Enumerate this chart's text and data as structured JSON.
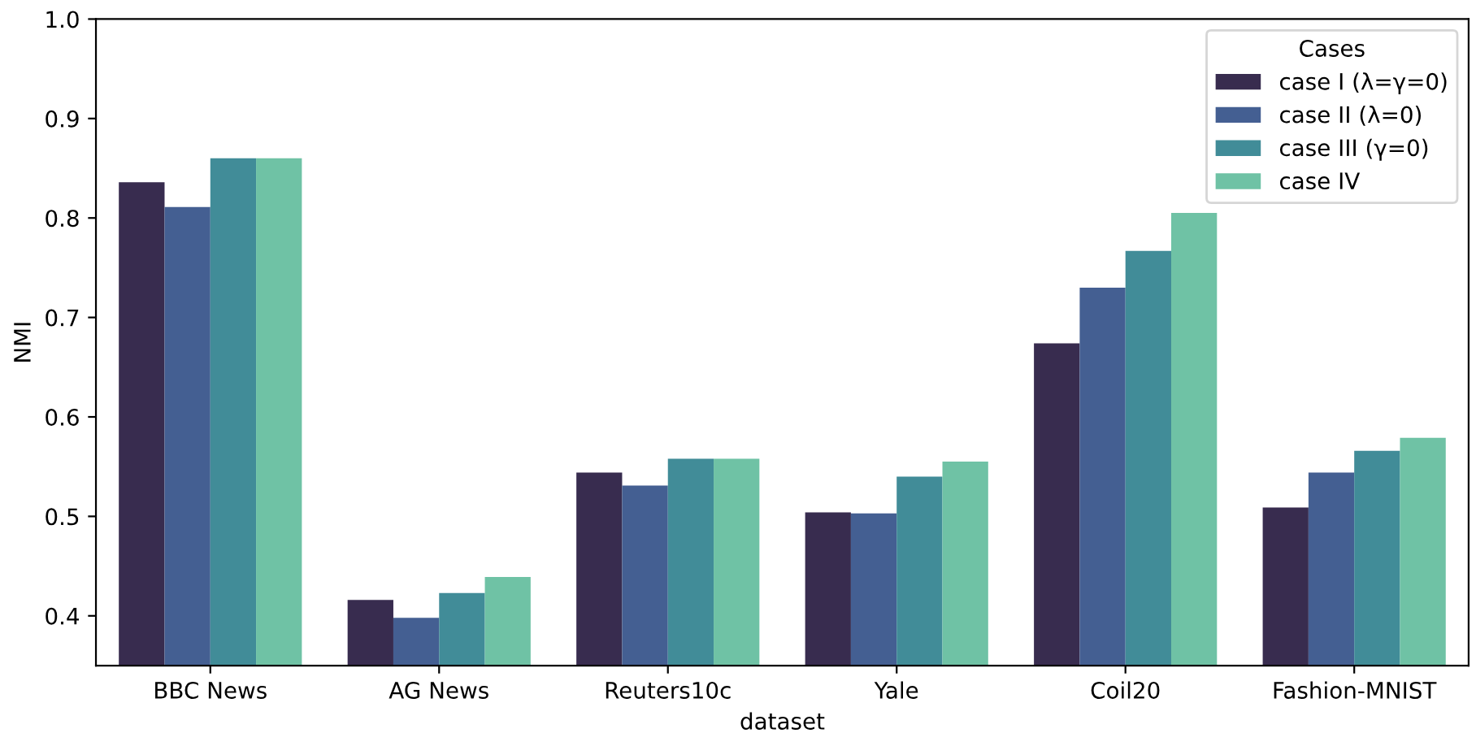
{
  "chart_data": {
    "type": "bar",
    "xlabel": "dataset",
    "ylabel": "NMI",
    "legend_title": "Cases",
    "legend": "top right",
    "grid": false,
    "categories": [
      "BBC News",
      "AG News",
      "Reuters10c",
      "Yale",
      "Coil20",
      "Fashion-MNIST"
    ],
    "ylim": [
      0.35,
      1.0
    ],
    "yticks": [
      0.4,
      0.5,
      0.6,
      0.7,
      0.8,
      0.9,
      {
        "value": 1,
        "label": "1.0"
      }
    ],
    "series": [
      {
        "name": "case I (λ=γ=0)",
        "color": "#382c4f",
        "values": [
          0.836,
          0.416,
          0.544,
          0.504,
          0.674,
          0.509
        ]
      },
      {
        "name": "case II (λ=0)",
        "color": "#445f92",
        "values": [
          0.811,
          0.398,
          0.531,
          0.503,
          0.73,
          0.544
        ]
      },
      {
        "name": "case III (γ=0)",
        "color": "#418c98",
        "values": [
          0.86,
          0.423,
          0.558,
          0.54,
          0.767,
          0.566
        ]
      },
      {
        "name": "case IV",
        "color": "#6fc2a5",
        "values": [
          0.86,
          0.439,
          0.558,
          0.555,
          0.805,
          0.579
        ]
      }
    ]
  }
}
